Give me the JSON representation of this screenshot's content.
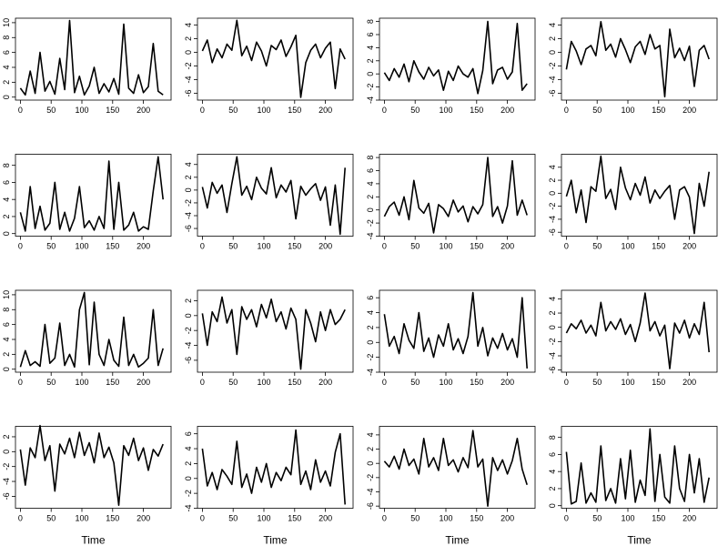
{
  "chart_data": [
    {
      "type": "line",
      "color": "#000000",
      "xlim": [
        -8,
        245
      ],
      "xticks": [
        0,
        50,
        100,
        150,
        200
      ],
      "ylim": [
        -0.4,
        10.6
      ],
      "yticks": [
        0,
        2,
        4,
        6,
        8,
        10
      ],
      "x": [
        0,
        8,
        16,
        24,
        32,
        40,
        48,
        56,
        64,
        72,
        80,
        88,
        96,
        104,
        112,
        120,
        128,
        136,
        144,
        152,
        160,
        168,
        176,
        184,
        192,
        200,
        208,
        216,
        224,
        232
      ],
      "values": [
        1.2,
        0.3,
        3.5,
        0.5,
        6.0,
        0.8,
        2.1,
        0.4,
        5.2,
        1.0,
        10.3,
        0.6,
        2.8,
        0.3,
        1.5,
        4.0,
        0.5,
        1.8,
        0.7,
        2.5,
        0.4,
        9.8,
        1.2,
        0.5,
        3.0,
        0.6,
        1.4,
        7.2,
        0.8,
        0.3
      ]
    },
    {
      "type": "line",
      "color": "#000000",
      "xlim": [
        -8,
        245
      ],
      "xticks": [
        0,
        50,
        100,
        150,
        200
      ],
      "ylim": [
        -7,
        5
      ],
      "yticks": [
        -6,
        -4,
        -2,
        0,
        2,
        4
      ],
      "x": [
        0,
        8,
        16,
        24,
        32,
        40,
        48,
        56,
        64,
        72,
        80,
        88,
        96,
        104,
        112,
        120,
        128,
        136,
        144,
        152,
        160,
        168,
        176,
        184,
        192,
        200,
        208,
        216,
        224,
        232
      ],
      "values": [
        0.2,
        1.8,
        -1.5,
        0.5,
        -0.8,
        1.2,
        0.3,
        4.7,
        -0.5,
        0.9,
        -1.2,
        1.5,
        0.2,
        -2.0,
        1.0,
        0.4,
        1.8,
        -0.6,
        0.8,
        2.5,
        -6.6,
        -1.5,
        0.3,
        1.2,
        -0.8,
        0.6,
        1.5,
        -5.3,
        0.5,
        -1.0
      ]
    },
    {
      "type": "line",
      "color": "#000000",
      "xlim": [
        -8,
        245
      ],
      "xticks": [
        0,
        50,
        100,
        150,
        200
      ],
      "ylim": [
        -4,
        8.5
      ],
      "yticks": [
        -4,
        -2,
        0,
        2,
        4,
        6,
        8
      ],
      "x": [
        0,
        8,
        16,
        24,
        32,
        40,
        48,
        56,
        64,
        72,
        80,
        88,
        96,
        104,
        112,
        120,
        128,
        136,
        144,
        152,
        160,
        168,
        176,
        184,
        192,
        200,
        208,
        216,
        224,
        232
      ],
      "values": [
        0.2,
        -1.0,
        0.8,
        -0.5,
        1.5,
        -1.2,
        2.0,
        0.3,
        -0.8,
        1.0,
        -0.3,
        0.6,
        -2.5,
        0.4,
        -1.0,
        1.2,
        0.0,
        -0.5,
        0.8,
        -3.0,
        0.5,
        8.0,
        -1.5,
        0.6,
        1.0,
        -0.8,
        0.3,
        7.7,
        -2.5,
        -1.5
      ]
    },
    {
      "type": "line",
      "color": "#000000",
      "xlim": [
        -8,
        245
      ],
      "xticks": [
        0,
        50,
        100,
        150,
        200
      ],
      "ylim": [
        -7,
        5
      ],
      "yticks": [
        -6,
        -4,
        -2,
        0,
        2,
        4
      ],
      "x": [
        0,
        8,
        16,
        24,
        32,
        40,
        48,
        56,
        64,
        72,
        80,
        88,
        96,
        104,
        112,
        120,
        128,
        136,
        144,
        152,
        160,
        168,
        176,
        184,
        192,
        200,
        208,
        216,
        224,
        232
      ],
      "values": [
        -2.5,
        1.6,
        0.2,
        -1.8,
        0.5,
        1.0,
        -0.5,
        4.5,
        0.3,
        1.2,
        -0.7,
        2.0,
        0.4,
        -1.5,
        0.8,
        1.6,
        -0.3,
        2.6,
        0.5,
        1.0,
        -6.5,
        3.4,
        -0.8,
        0.6,
        -1.2,
        0.9,
        -5.0,
        0.3,
        1.0,
        -1.0
      ]
    },
    {
      "type": "line",
      "color": "#000000",
      "xlim": [
        -8,
        245
      ],
      "xticks": [
        0,
        50,
        100,
        150,
        200
      ],
      "ylim": [
        -0.3,
        9.3
      ],
      "yticks": [
        0,
        2,
        4,
        6,
        8
      ],
      "x": [
        0,
        8,
        16,
        24,
        32,
        40,
        48,
        56,
        64,
        72,
        80,
        88,
        96,
        104,
        112,
        120,
        128,
        136,
        144,
        152,
        160,
        168,
        176,
        184,
        192,
        200,
        208,
        216,
        224,
        232
      ],
      "values": [
        2.5,
        0.3,
        5.5,
        0.6,
        3.2,
        0.4,
        1.2,
        6.0,
        0.5,
        2.5,
        0.3,
        1.8,
        5.5,
        0.7,
        1.5,
        0.4,
        2.0,
        0.6,
        8.5,
        0.5,
        6.0,
        0.4,
        1.0,
        2.5,
        0.3,
        0.8,
        0.5,
        5.0,
        9.0,
        4.0
      ]
    },
    {
      "type": "line",
      "color": "#000000",
      "xlim": [
        -8,
        245
      ],
      "xticks": [
        0,
        50,
        100,
        150,
        200
      ],
      "ylim": [
        -7.2,
        5.6
      ],
      "yticks": [
        -6,
        -4,
        -2,
        0,
        2,
        4
      ],
      "x": [
        0,
        8,
        16,
        24,
        32,
        40,
        48,
        56,
        64,
        72,
        80,
        88,
        96,
        104,
        112,
        120,
        128,
        136,
        144,
        152,
        160,
        168,
        176,
        184,
        192,
        200,
        208,
        216,
        224,
        232
      ],
      "values": [
        0.5,
        -2.8,
        1.2,
        -0.5,
        0.8,
        -3.5,
        1.0,
        5.2,
        -0.8,
        0.6,
        -1.5,
        2.0,
        0.3,
        -0.6,
        3.5,
        -1.2,
        0.8,
        -0.3,
        1.5,
        -4.5,
        0.6,
        -0.8,
        0.2,
        1.0,
        -1.6,
        0.5,
        -5.5,
        0.8,
        -6.9,
        3.5
      ]
    },
    {
      "type": "line",
      "color": "#000000",
      "xlim": [
        -8,
        245
      ],
      "xticks": [
        0,
        50,
        100,
        150,
        200
      ],
      "ylim": [
        -4,
        8.5
      ],
      "yticks": [
        -4,
        -2,
        0,
        2,
        4,
        6,
        8
      ],
      "x": [
        0,
        8,
        16,
        24,
        32,
        40,
        48,
        56,
        64,
        72,
        80,
        88,
        96,
        104,
        112,
        120,
        128,
        136,
        144,
        152,
        160,
        168,
        176,
        184,
        192,
        200,
        208,
        216,
        224,
        232
      ],
      "values": [
        -1.0,
        0.5,
        1.2,
        -0.8,
        2.0,
        -1.5,
        4.5,
        0.3,
        -0.5,
        1.0,
        -3.5,
        0.8,
        0.2,
        -1.0,
        1.5,
        -0.3,
        0.6,
        -1.8,
        0.5,
        -0.6,
        0.8,
        8.0,
        -1.0,
        0.5,
        -2.0,
        0.6,
        7.5,
        -0.8,
        1.5,
        -0.8
      ]
    },
    {
      "type": "line",
      "color": "#000000",
      "xlim": [
        -8,
        245
      ],
      "xticks": [
        0,
        50,
        100,
        150,
        200
      ],
      "ylim": [
        -6.6,
        6
      ],
      "yticks": [
        -6,
        -4,
        -2,
        0,
        2,
        4
      ],
      "x": [
        0,
        8,
        16,
        24,
        32,
        40,
        48,
        56,
        64,
        72,
        80,
        88,
        96,
        104,
        112,
        120,
        128,
        136,
        144,
        152,
        160,
        168,
        176,
        184,
        192,
        200,
        208,
        216,
        224,
        232
      ],
      "values": [
        -0.5,
        2.0,
        -3.0,
        0.5,
        -4.5,
        1.0,
        0.3,
        5.7,
        -0.8,
        0.6,
        -2.5,
        4.0,
        0.8,
        -1.0,
        1.5,
        -0.3,
        2.5,
        -1.5,
        0.5,
        -0.8,
        0.3,
        1.2,
        -4.0,
        0.5,
        1.0,
        -0.6,
        -6.2,
        1.5,
        -2.0,
        3.3
      ]
    },
    {
      "type": "line",
      "color": "#000000",
      "xlim": [
        -8,
        245
      ],
      "xticks": [
        0,
        50,
        100,
        150,
        200
      ],
      "ylim": [
        -0.4,
        10.6
      ],
      "yticks": [
        0,
        2,
        4,
        6,
        8,
        10
      ],
      "x": [
        0,
        8,
        16,
        24,
        32,
        40,
        48,
        56,
        64,
        72,
        80,
        88,
        96,
        104,
        112,
        120,
        128,
        136,
        144,
        152,
        160,
        168,
        176,
        184,
        192,
        200,
        208,
        216,
        224,
        232
      ],
      "values": [
        0.3,
        2.5,
        0.5,
        1.0,
        0.4,
        6.0,
        0.8,
        1.5,
        6.2,
        0.5,
        2.0,
        0.3,
        8.0,
        10.3,
        0.6,
        9.0,
        2.0,
        0.5,
        4.0,
        1.2,
        0.4,
        7.0,
        0.5,
        2.0,
        0.3,
        0.8,
        1.5,
        8.0,
        0.5,
        2.8
      ]
    },
    {
      "type": "line",
      "color": "#000000",
      "xlim": [
        -8,
        245
      ],
      "xticks": [
        0,
        50,
        100,
        150,
        200
      ],
      "ylim": [
        -7.6,
        3.4
      ],
      "yticks": [
        -6,
        -4,
        -2,
        0,
        2
      ],
      "x": [
        0,
        8,
        16,
        24,
        32,
        40,
        48,
        56,
        64,
        72,
        80,
        88,
        96,
        104,
        112,
        120,
        128,
        136,
        144,
        152,
        160,
        168,
        176,
        184,
        192,
        200,
        208,
        216,
        224,
        232
      ],
      "values": [
        0.3,
        -4.0,
        0.5,
        -0.8,
        2.5,
        -1.0,
        0.8,
        -5.2,
        1.2,
        -0.5,
        0.8,
        -1.5,
        1.5,
        -0.3,
        2.2,
        -0.8,
        0.5,
        -1.8,
        1.0,
        -0.5,
        -7.2,
        0.8,
        -1.0,
        -3.5,
        0.5,
        -2.0,
        0.8,
        -1.2,
        -0.5,
        0.8
      ]
    },
    {
      "type": "line",
      "color": "#000000",
      "xlim": [
        -8,
        245
      ],
      "xticks": [
        0,
        50,
        100,
        150,
        200
      ],
      "ylim": [
        -4,
        7
      ],
      "yticks": [
        -4,
        -2,
        0,
        2,
        4,
        6
      ],
      "x": [
        0,
        8,
        16,
        24,
        32,
        40,
        48,
        56,
        64,
        72,
        80,
        88,
        96,
        104,
        112,
        120,
        128,
        136,
        144,
        152,
        160,
        168,
        176,
        184,
        192,
        200,
        208,
        216,
        224,
        232
      ],
      "values": [
        3.8,
        -0.5,
        0.8,
        -1.5,
        2.5,
        0.3,
        -0.8,
        4.0,
        -1.2,
        0.6,
        -2.0,
        1.0,
        -0.5,
        2.5,
        -1.0,
        0.5,
        -1.5,
        0.8,
        6.7,
        -0.5,
        2.0,
        -1.8,
        0.6,
        -0.8,
        1.2,
        -1.0,
        0.5,
        -2.0,
        6.0,
        -3.5
      ]
    },
    {
      "type": "line",
      "color": "#000000",
      "xlim": [
        -8,
        245
      ],
      "xticks": [
        0,
        50,
        100,
        150,
        200
      ],
      "ylim": [
        -6.3,
        5.2
      ],
      "yticks": [
        -6,
        -4,
        -2,
        0,
        2,
        4
      ],
      "x": [
        0,
        8,
        16,
        24,
        32,
        40,
        48,
        56,
        64,
        72,
        80,
        88,
        96,
        104,
        112,
        120,
        128,
        136,
        144,
        152,
        160,
        168,
        176,
        184,
        192,
        200,
        208,
        216,
        224,
        232
      ],
      "values": [
        -0.8,
        0.5,
        -0.2,
        1.0,
        -0.8,
        0.3,
        -1.2,
        3.5,
        -0.5,
        0.8,
        -0.3,
        1.2,
        -1.0,
        0.4,
        -2.0,
        0.6,
        4.8,
        -0.5,
        0.8,
        -1.2,
        0.3,
        -5.8,
        0.6,
        -0.8,
        1.0,
        -1.5,
        0.5,
        -1.0,
        3.5,
        -3.5
      ]
    },
    {
      "type": "line",
      "color": "#000000",
      "xlim": [
        -8,
        245
      ],
      "xticks": [
        0,
        50,
        100,
        150,
        200
      ],
      "ylim": [
        -7.6,
        3.4
      ],
      "yticks": [
        -6,
        -4,
        -2,
        0,
        2
      ],
      "x": [
        0,
        8,
        16,
        24,
        32,
        40,
        48,
        56,
        64,
        72,
        80,
        88,
        96,
        104,
        112,
        120,
        128,
        136,
        144,
        152,
        160,
        168,
        176,
        184,
        192,
        200,
        208,
        216,
        224,
        232
      ],
      "values": [
        0.3,
        -4.5,
        0.5,
        -0.8,
        3.5,
        -1.2,
        0.8,
        -5.3,
        1.0,
        -0.3,
        1.8,
        -0.8,
        2.6,
        -0.5,
        1.2,
        -1.5,
        2.5,
        -0.8,
        0.6,
        -1.5,
        -7.2,
        0.8,
        -0.5,
        1.8,
        -1.2,
        0.5,
        -2.5,
        0.3,
        -0.6,
        1.0
      ],
      "x_label": "Time"
    },
    {
      "type": "line",
      "color": "#000000",
      "xlim": [
        -8,
        245
      ],
      "xticks": [
        0,
        50,
        100,
        150,
        200
      ],
      "ylim": [
        -4,
        7
      ],
      "yticks": [
        -4,
        -2,
        0,
        2,
        4,
        6
      ],
      "x": [
        0,
        8,
        16,
        24,
        32,
        40,
        48,
        56,
        64,
        72,
        80,
        88,
        96,
        104,
        112,
        120,
        128,
        136,
        144,
        152,
        160,
        168,
        176,
        184,
        192,
        200,
        208,
        216,
        224,
        232
      ],
      "values": [
        4.0,
        -1.0,
        0.8,
        -1.5,
        1.2,
        0.3,
        -0.8,
        5.0,
        -1.2,
        0.6,
        -2.0,
        1.5,
        -0.5,
        2.0,
        -1.2,
        0.8,
        -0.3,
        1.5,
        0.5,
        6.5,
        -0.8,
        1.0,
        -1.5,
        2.5,
        -0.5,
        1.0,
        -1.0,
        3.5,
        6.0,
        -3.5
      ],
      "x_label": "Time"
    },
    {
      "type": "line",
      "color": "#000000",
      "xlim": [
        -8,
        245
      ],
      "xticks": [
        0,
        50,
        100,
        150,
        200
      ],
      "ylim": [
        -6.3,
        5.2
      ],
      "yticks": [
        -6,
        -4,
        -2,
        0,
        2,
        4
      ],
      "x": [
        0,
        8,
        16,
        24,
        32,
        40,
        48,
        56,
        64,
        72,
        80,
        88,
        96,
        104,
        112,
        120,
        128,
        136,
        144,
        152,
        160,
        168,
        176,
        184,
        192,
        200,
        208,
        216,
        224,
        232
      ],
      "values": [
        0.3,
        -0.5,
        1.0,
        -0.8,
        2.0,
        -0.3,
        0.6,
        -1.5,
        3.5,
        -0.5,
        0.8,
        -1.0,
        3.5,
        -0.3,
        0.5,
        -1.2,
        0.8,
        -0.6,
        4.6,
        -0.5,
        0.6,
        -6.0,
        0.8,
        -1.0,
        0.5,
        -1.5,
        0.4,
        3.5,
        -0.8,
        -3.0
      ],
      "x_label": "Time"
    },
    {
      "type": "line",
      "color": "#000000",
      "xlim": [
        -8,
        245
      ],
      "xticks": [
        0,
        50,
        100,
        150,
        200
      ],
      "ylim": [
        -0.3,
        9.3
      ],
      "yticks": [
        0,
        2,
        4,
        6,
        8
      ],
      "x": [
        0,
        8,
        16,
        24,
        32,
        40,
        48,
        56,
        64,
        72,
        80,
        88,
        96,
        104,
        112,
        120,
        128,
        136,
        144,
        152,
        160,
        168,
        176,
        184,
        192,
        200,
        208,
        216,
        224,
        232
      ],
      "values": [
        6.3,
        0.2,
        0.5,
        5.0,
        0.3,
        1.5,
        0.4,
        7.0,
        0.6,
        2.0,
        0.3,
        5.5,
        0.8,
        6.5,
        0.4,
        3.0,
        1.2,
        9.0,
        0.5,
        6.0,
        1.0,
        0.3,
        7.0,
        2.0,
        0.5,
        6.0,
        1.5,
        5.5,
        0.4,
        3.3
      ],
      "x_label": "Time"
    }
  ]
}
